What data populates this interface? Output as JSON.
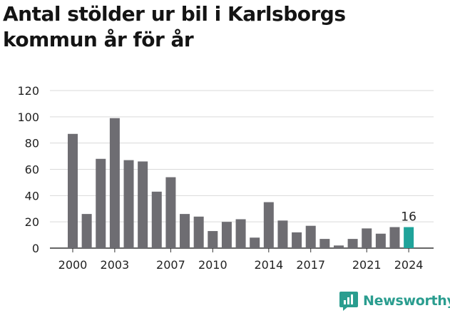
{
  "chart_data": {
    "type": "bar",
    "title": "Antal stölder ur bil i Karlsborgs kommun år för år",
    "xlabel": "",
    "ylabel": "",
    "ylim": [
      0,
      120
    ],
    "yticks": [
      0,
      20,
      40,
      60,
      80,
      100,
      120
    ],
    "grid": true,
    "categories": [
      "2000",
      "2001",
      "2002",
      "2003",
      "2004",
      "2005",
      "2006",
      "2007",
      "2008",
      "2009",
      "2010",
      "2011",
      "2012",
      "2013",
      "2014",
      "2015",
      "2016",
      "2017",
      "2018",
      "2019",
      "2020",
      "2021",
      "2022",
      "2023",
      "2024"
    ],
    "values": [
      87,
      26,
      68,
      99,
      67,
      66,
      43,
      54,
      26,
      24,
      13,
      20,
      22,
      8,
      35,
      21,
      12,
      17,
      7,
      2,
      7,
      15,
      11,
      16,
      16
    ],
    "xtick_labels": [
      "2000",
      "2003",
      "2007",
      "2010",
      "2014",
      "2017",
      "2021",
      "2024"
    ],
    "highlight": {
      "category": "2024",
      "label": "16"
    },
    "colors": {
      "bar": "#6e6d72",
      "highlight": "#1fa39a",
      "grid": "#d9d9d9",
      "axis": "#333333"
    }
  },
  "brand": {
    "name": "Newsworthy",
    "icon": "newsworthy-logo-icon",
    "color": "#2a9d8f"
  }
}
